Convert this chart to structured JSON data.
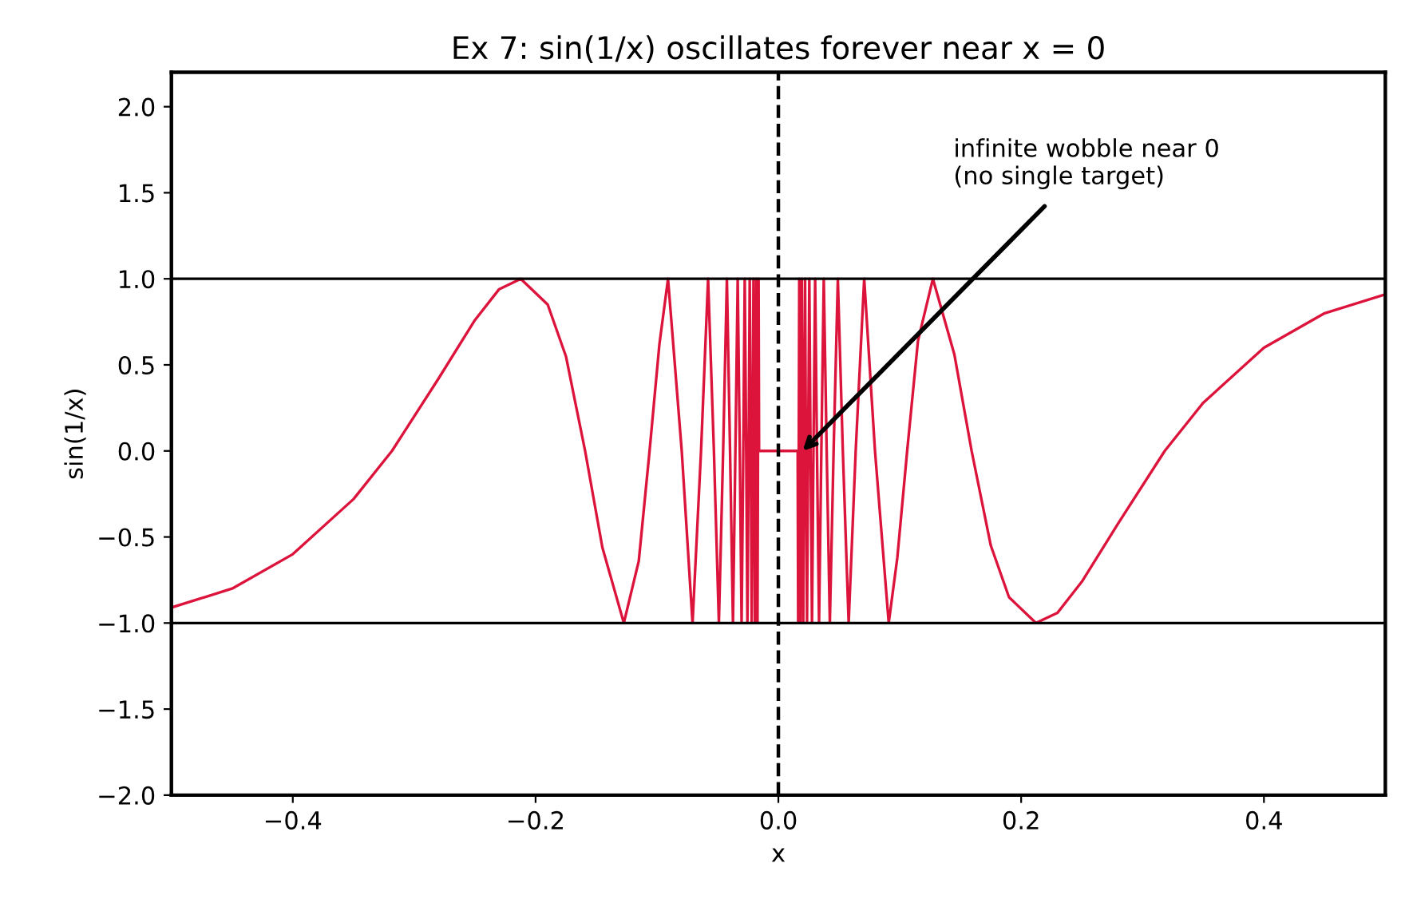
{
  "chart_data": {
    "type": "line",
    "title": "Ex 7: sin(1/x) oscillates forever near x = 0",
    "xlabel": "x",
    "ylabel": "sin(1/x)",
    "series": [
      {
        "color": "#dc143c",
        "x": [
          -0.5,
          -0.45,
          -0.4,
          -0.35,
          -0.3183,
          -0.28,
          -0.25,
          -0.23,
          -0.2122,
          -0.19,
          -0.175,
          -0.1592,
          -0.145,
          -0.1273,
          -0.115,
          -0.1061,
          -0.098,
          -0.0909,
          -0.0796,
          -0.0707,
          -0.0637,
          -0.0579,
          -0.0531,
          -0.049,
          -0.0455,
          -0.0424,
          -0.0398,
          -0.0374,
          -0.0354,
          -0.0335,
          -0.0318,
          -0.0303,
          -0.0289,
          -0.0277,
          -0.0265,
          -0.0255,
          -0.0245,
          -0.0236,
          -0.0227,
          -0.022,
          -0.0212,
          -0.0205,
          -0.0199,
          -0.0193,
          -0.0187,
          -0.0182,
          -0.0177,
          -0.0172,
          -0.0168,
          -0.0163,
          -0.0159,
          0.0159,
          0.0163,
          0.0168,
          0.0172,
          0.0177,
          0.0182,
          0.0187,
          0.0193,
          0.0199,
          0.0205,
          0.0212,
          0.022,
          0.0227,
          0.0236,
          0.0245,
          0.0255,
          0.0265,
          0.0277,
          0.0289,
          0.0303,
          0.0318,
          0.0335,
          0.0354,
          0.0374,
          0.0398,
          0.0424,
          0.0455,
          0.049,
          0.0531,
          0.0579,
          0.0637,
          0.0707,
          0.0796,
          0.0909,
          0.098,
          0.1061,
          0.115,
          0.1273,
          0.145,
          0.1592,
          0.175,
          0.19,
          0.2122,
          0.23,
          0.25,
          0.28,
          0.3183,
          0.35,
          0.4,
          0.45,
          0.5
        ],
        "values": [
          -0.91,
          -0.8,
          -0.6,
          -0.28,
          0,
          0.42,
          0.76,
          0.94,
          1,
          0.85,
          0.55,
          0,
          -0.56,
          -1,
          -0.64,
          0,
          0.62,
          1,
          0,
          -1,
          0,
          1,
          0,
          -1,
          0,
          1,
          0,
          -1,
          0,
          1,
          0,
          -1,
          0,
          1,
          0,
          -1,
          0,
          1,
          0,
          -1,
          0,
          1,
          0,
          -1,
          0,
          1,
          0,
          -1,
          0,
          1,
          0,
          0,
          -1,
          0,
          1,
          0,
          -1,
          0,
          1,
          0,
          -1,
          0,
          1,
          0,
          -1,
          0,
          1,
          0,
          -1,
          0,
          1,
          0,
          -1,
          0,
          1,
          0,
          -1,
          0,
          1,
          0,
          -1,
          0,
          1,
          0,
          -1,
          -0.62,
          0,
          0.64,
          1,
          0.56,
          0,
          -0.55,
          -0.85,
          -1,
          -0.94,
          -0.76,
          -0.42,
          0,
          0.28,
          0.6,
          0.8,
          0.91
        ]
      }
    ],
    "xlim": [
      -0.5,
      0.5
    ],
    "xticks": [
      {
        "value": -0.4,
        "label": "−0.4"
      },
      {
        "value": -0.2,
        "label": "−0.2"
      },
      {
        "value": 0,
        "label": "0.0"
      },
      {
        "value": 0.2,
        "label": "0.2"
      },
      {
        "value": 0.4,
        "label": "0.4"
      }
    ],
    "ylim": [
      -2.0,
      2.2
    ],
    "yticks": [
      {
        "value": -2,
        "label": "−2.0"
      },
      {
        "value": -1.5,
        "label": "−1.5"
      },
      {
        "value": -1,
        "label": "−1.0"
      },
      {
        "value": -0.5,
        "label": "−0.5"
      },
      {
        "value": 0,
        "label": "0.0"
      },
      {
        "value": 0.5,
        "label": "0.5"
      },
      {
        "value": 1,
        "label": "1.0"
      },
      {
        "value": 1.5,
        "label": "1.5"
      },
      {
        "value": 2,
        "label": "2.0"
      }
    ],
    "ref_lines": [
      {
        "axis": "y",
        "value": 1.0,
        "color": "#000000",
        "line_style": "solid"
      },
      {
        "axis": "y",
        "value": -1.0,
        "color": "#000000",
        "line_style": "solid"
      },
      {
        "axis": "x",
        "value": 0.0,
        "color": "#000000",
        "line_style": "dashed"
      }
    ],
    "annotations": [
      {
        "text": "infinite wobble near 0\n(no single target)",
        "x": 0.02,
        "y": 0.0
      }
    ],
    "grid": false,
    "legend": false,
    "marker": "none",
    "line_style": "solid"
  }
}
